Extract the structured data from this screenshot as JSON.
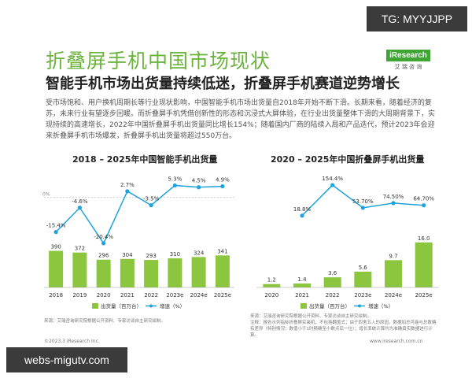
{
  "watermarks": {
    "top_right": "TG: MYYJJPP",
    "bottom_left": "webs-migutv.com"
  },
  "logo": {
    "text": "iResearch",
    "sub": "艾 瑞 咨 询"
  },
  "header": {
    "title": "折叠屏手机中国市场现状",
    "subtitle": "智能手机市场出货量持续低迷，折叠屏手机赛道逆势增长"
  },
  "body_text": "受市场饱和、用户换机周期长等行业现状影响，中国智能手机市场出货量自2018年开始不断下滑。长期来看，随着经济的复苏，未来行业有望逐步回暖。而折叠屏手机凭借创新性的形态和沉浸式大屏体验，在行业出货量整体下滑的大周期背景下，实现持续的高速增长，2022年中国折叠屏手机出货量同比增长154%；随着国内厂商的陆续入局和产品迭代，预计2023年会迎来折叠屏手机市场爆发，折叠屏手机出货量将超过550万台。",
  "colors": {
    "bar": "#8cc63f",
    "line": "#1fa3dc",
    "title": "#6cb33e"
  },
  "chart_data": [
    {
      "type": "bar",
      "title": "2018 – 2025年中国智能手机出货量",
      "categories": [
        "2018",
        "2019",
        "2020",
        "2021",
        "2022",
        "2023e",
        "2024e",
        "2025e"
      ],
      "series": [
        {
          "name": "出货量（百万台）",
          "type": "bar",
          "values": [
            390,
            372,
            296,
            304,
            293,
            310,
            324,
            341
          ]
        },
        {
          "name": "增速（%）",
          "type": "line",
          "values": [
            -15.4,
            -4.6,
            -20.4,
            2.7,
            -3.5,
            5.3,
            4.5,
            4.9
          ],
          "labels": [
            "-15.4%",
            "-4.6%",
            "-20.4%",
            "2.7%",
            "-3.5%",
            "5.3%",
            "4.5%",
            "4.9%"
          ]
        }
      ],
      "zero_label": "0%",
      "ylim_bar": [
        0,
        1200
      ],
      "ylim_line": [
        -40,
        10
      ],
      "legend": [
        "出货量（百万台）",
        "增速（%）"
      ],
      "source": "来源：艾瑞咨询研究院根据公开资料、专家访谈自主研究绘制。"
    },
    {
      "type": "bar",
      "title": "2020 – 2025年中国折叠屏手机出货量",
      "categories": [
        "2020",
        "2021",
        "2022",
        "2023e",
        "2024e",
        "2025e"
      ],
      "series": [
        {
          "name": "出货量（百万台）",
          "type": "bar",
          "values": [
            1.2,
            1.4,
            3.6,
            5.6,
            9.7,
            16.0
          ],
          "labels": [
            "1.2",
            "1.4",
            "3.6",
            "5.6",
            "9.7",
            "16.0"
          ]
        },
        {
          "name": "增速（%）",
          "type": "line",
          "values": [
            null,
            18.8,
            154.4,
            53.7,
            74.5,
            64.7
          ],
          "labels": [
            "",
            "18.8%",
            "154.4%",
            "53.70%",
            "74.50%",
            "64.70%"
          ]
        }
      ],
      "ylim_bar": [
        0,
        40
      ],
      "ylim_line": [
        -300,
        200
      ],
      "legend": [
        "出货量（百万台）",
        "增速（%）"
      ],
      "source": "来源：艾瑞咨询研究院根据公开资料、专家访谈自主研究绘制。",
      "note": "注释：报告示列指标折叠屏实装机，不包括翻盖式；由于四舍五入的原因，数据加总可能与总数略有差异（特别情况：数值小于1时精确至小数点后一位）；增长率统计算均为准确真实数据进行计算。"
    }
  ],
  "footer": {
    "left": "©2023.3 iResearch Inc.",
    "right": "www.iresearch.com.cn"
  }
}
